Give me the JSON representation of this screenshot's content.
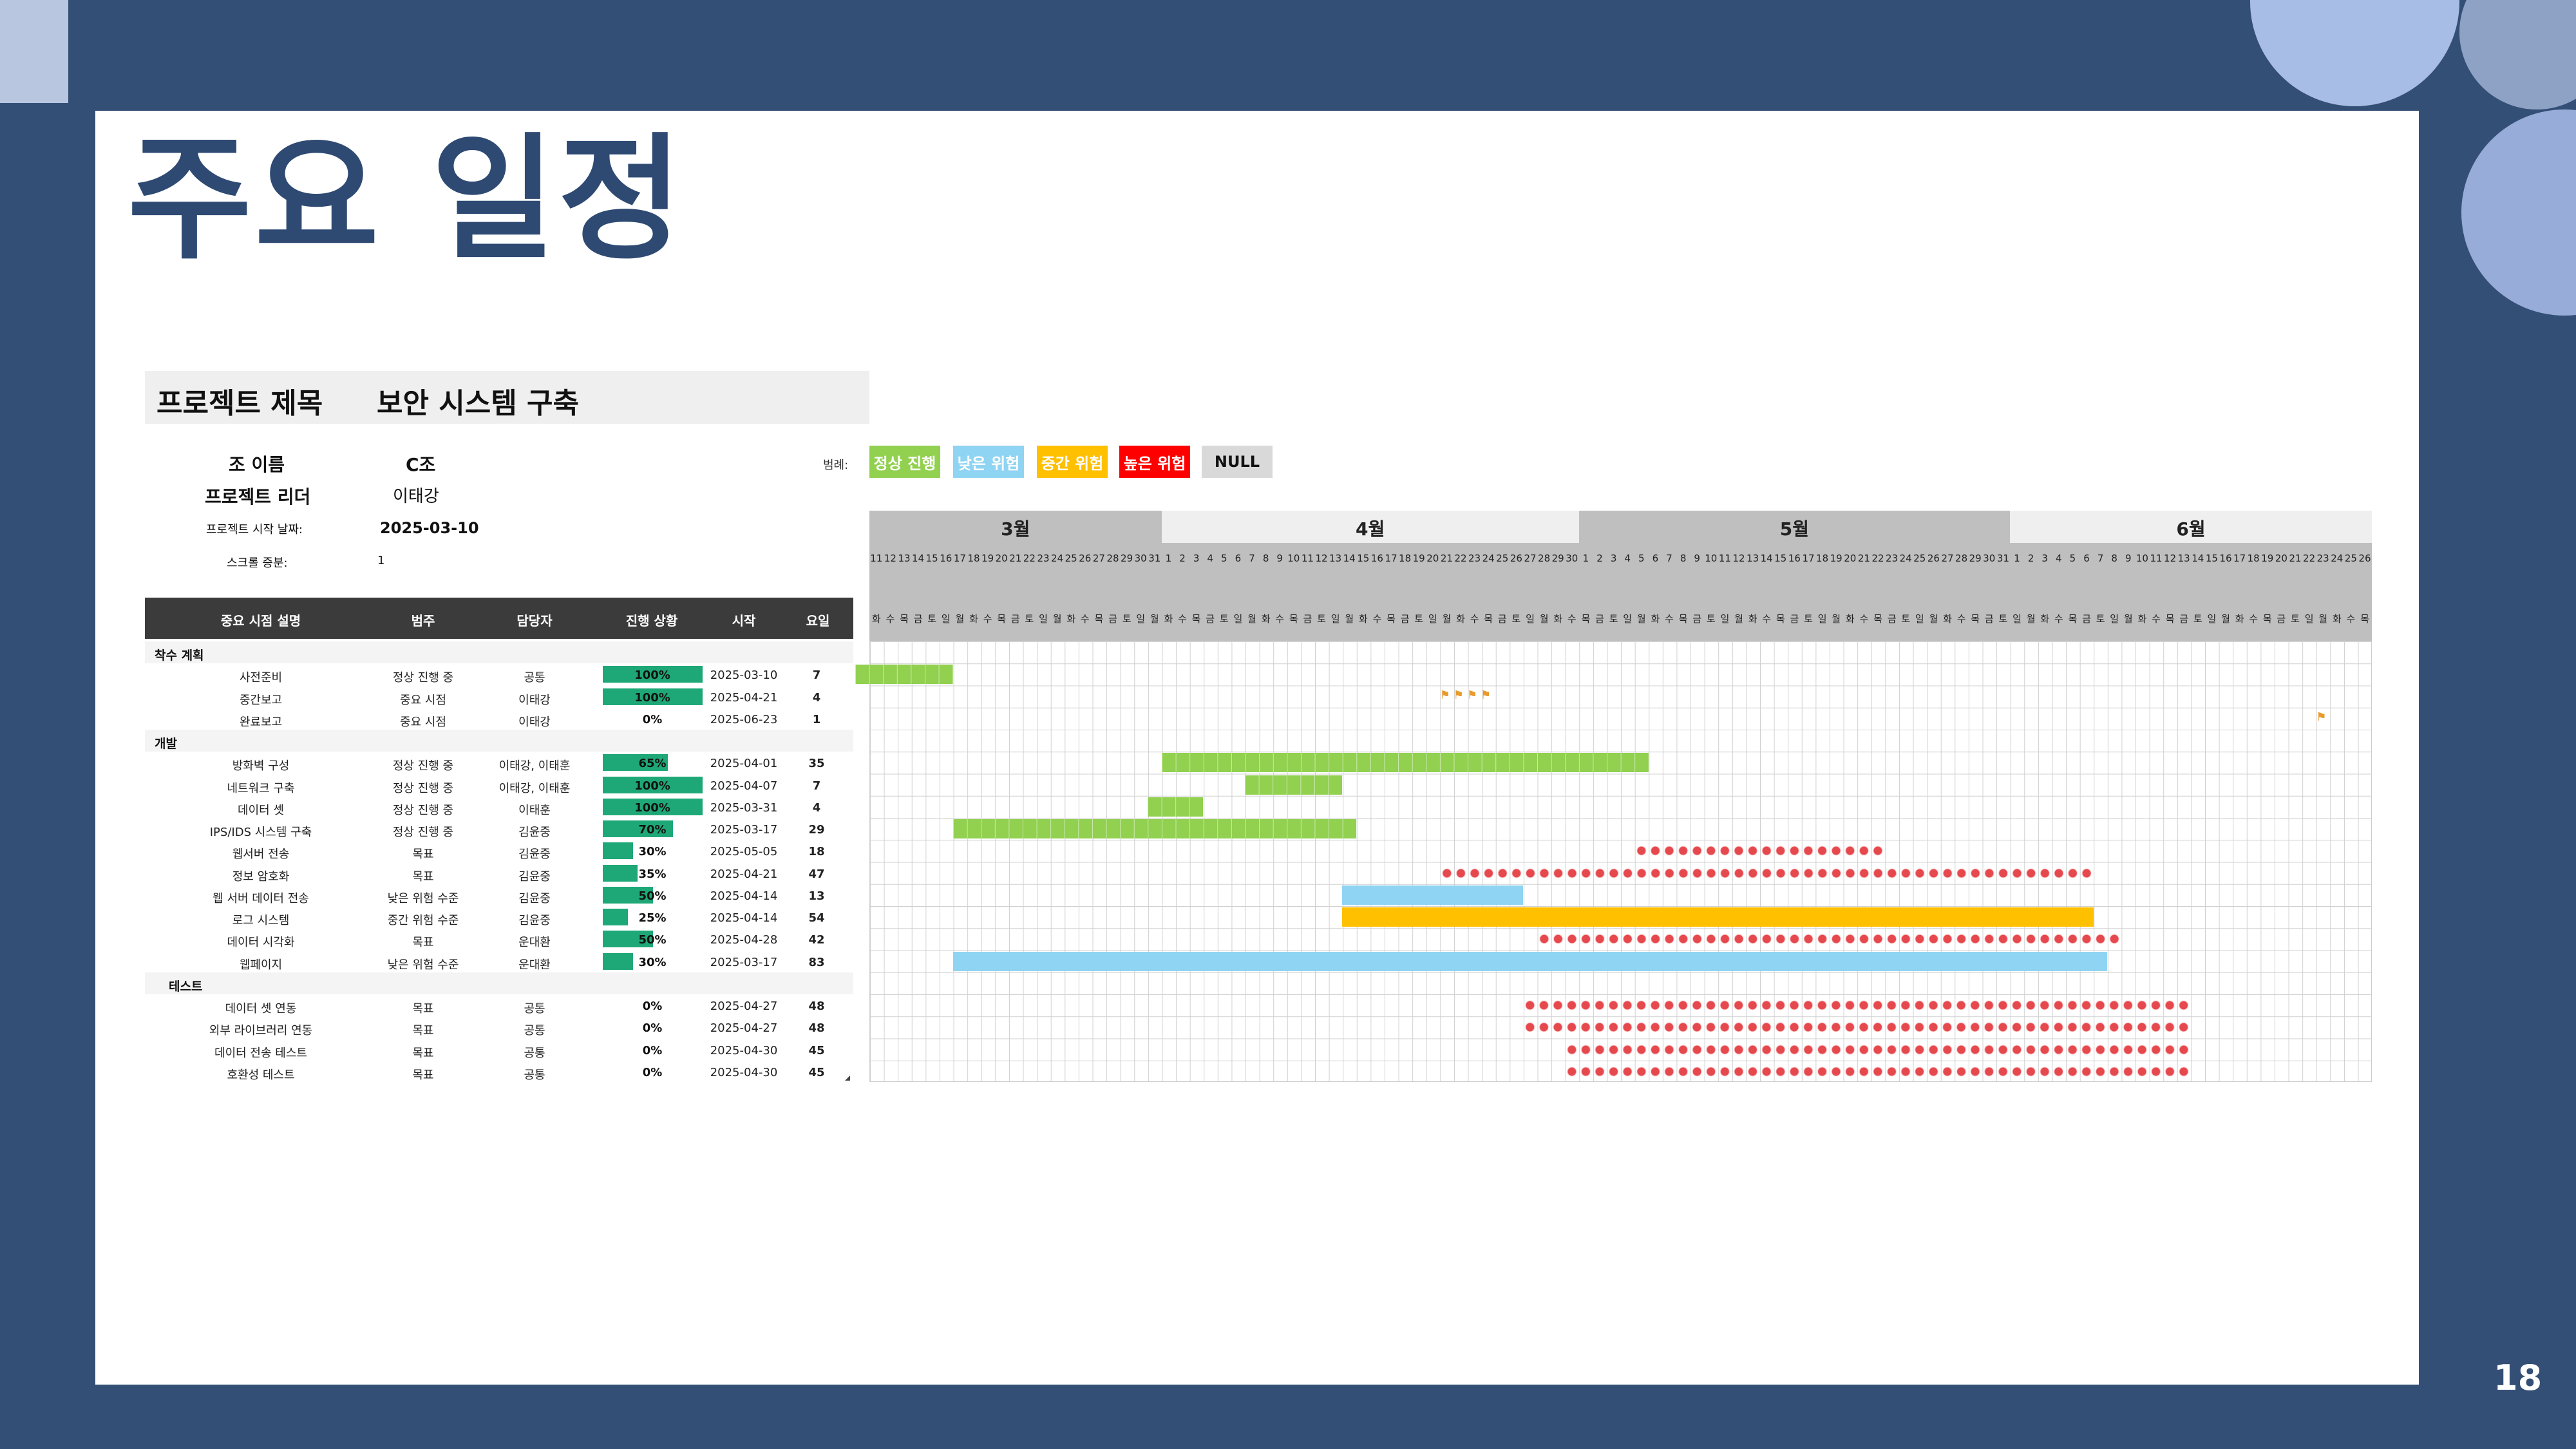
{
  "page": {
    "title": "주요 일정",
    "page_number": "18"
  },
  "project": {
    "title_label": "프로젝트 제목",
    "title_value": "보안 시스템 구축",
    "team_label": "조 이름",
    "team_value": "C조",
    "leader_label": "프로젝트 리더",
    "leader_value": "이태강",
    "start_label": "프로젝트 시작 날짜:",
    "start_value": "2025-03-10",
    "scroll_label": "스크롤 증분:",
    "scroll_value": "1"
  },
  "legend": {
    "label": "범례:",
    "items": [
      {
        "label": "정상 진행",
        "color": "#92d050"
      },
      {
        "label": "낮은 위험",
        "color": "#8fd4f2"
      },
      {
        "label": "중간 위험",
        "color": "#ffc000"
      },
      {
        "label": "높은 위험",
        "color": "#ff0000"
      },
      {
        "label": "NULL",
        "color": "#d9d9d9"
      }
    ]
  },
  "table": {
    "headers": [
      "중요 시점 설명",
      "범주",
      "담당자",
      "진행 상황",
      "시작",
      "요일"
    ],
    "sections": [
      {
        "name": "착수 계획",
        "rows": [
          {
            "desc": "사전준비",
            "cat": "정상 진행 중",
            "owner": "공통",
            "progress": 100,
            "progress_label": "100%",
            "start": "2025-03-10",
            "days": "7"
          },
          {
            "desc": "중간보고",
            "cat": "중요 시점",
            "owner": "이태강",
            "progress": 100,
            "progress_label": "100%",
            "start": "2025-04-21",
            "days": "4"
          },
          {
            "desc": "완료보고",
            "cat": "중요 시점",
            "owner": "이태강",
            "progress": 0,
            "progress_label": "0%",
            "start": "2025-06-23",
            "days": "1"
          }
        ]
      },
      {
        "name": "개발",
        "rows": [
          {
            "desc": "방화벽 구성",
            "cat": "정상 진행 중",
            "owner": "이태강, 이태훈",
            "progress": 65,
            "progress_label": "65%",
            "start": "2025-04-01",
            "days": "35"
          },
          {
            "desc": "네트워크 구축",
            "cat": "정상 진행 중",
            "owner": "이태강, 이태훈",
            "progress": 100,
            "progress_label": "100%",
            "start": "2025-04-07",
            "days": "7"
          },
          {
            "desc": "데이터 셋",
            "cat": "정상 진행 중",
            "owner": "이태훈",
            "progress": 100,
            "progress_label": "100%",
            "start": "2025-03-31",
            "days": "4"
          },
          {
            "desc": "IPS/IDS 시스템 구축",
            "cat": "정상 진행 중",
            "owner": "김윤중",
            "progress": 70,
            "progress_label": "70%",
            "start": "2025-03-17",
            "days": "29"
          },
          {
            "desc": "웹서버 전송",
            "cat": "목표",
            "owner": "김윤중",
            "progress": 30,
            "progress_label": "30%",
            "start": "2025-05-05",
            "days": "18"
          },
          {
            "desc": "정보 암호화",
            "cat": "목표",
            "owner": "김윤중",
            "progress": 35,
            "progress_label": "35%",
            "start": "2025-04-21",
            "days": "47"
          },
          {
            "desc": "웹 서버 데이터 전송",
            "cat": "낮은 위험 수준",
            "owner": "김윤중",
            "progress": 50,
            "progress_label": "50%",
            "start": "2025-04-14",
            "days": "13"
          },
          {
            "desc": "로그 시스템",
            "cat": "중간 위험 수준",
            "owner": "김윤중",
            "progress": 25,
            "progress_label": "25%",
            "start": "2025-04-14",
            "days": "54"
          },
          {
            "desc": "데이터 시각화",
            "cat": "목표",
            "owner": "운대환",
            "progress": 50,
            "progress_label": "50%",
            "start": "2025-04-28",
            "days": "42"
          },
          {
            "desc": "웹페이지",
            "cat": "낮은 위험 수준",
            "owner": "운대환",
            "progress": 30,
            "progress_label": "30%",
            "start": "2025-03-17",
            "days": "83"
          }
        ]
      },
      {
        "name": "테스트",
        "rows": [
          {
            "desc": "데이터 셋 연동",
            "cat": "목표",
            "owner": "공통",
            "progress": 0,
            "progress_label": "0%",
            "start": "2025-04-27",
            "days": "48"
          },
          {
            "desc": "외부 라이브러리 연동",
            "cat": "목표",
            "owner": "공통",
            "progress": 0,
            "progress_label": "0%",
            "start": "2025-04-27",
            "days": "48"
          },
          {
            "desc": "데이터 전송 테스트",
            "cat": "목표",
            "owner": "공통",
            "progress": 0,
            "progress_label": "0%",
            "start": "2025-04-30",
            "days": "45"
          },
          {
            "desc": "호환성 테스트",
            "cat": "목표",
            "owner": "공통",
            "progress": 0,
            "progress_label": "0%",
            "start": "2025-04-30",
            "days": "45"
          }
        ]
      }
    ]
  },
  "gantt": {
    "months": [
      "3월",
      "4월",
      "5월",
      "6월"
    ],
    "month_colors": [
      "#bfbfbf",
      "#efefef",
      "#bfbfbf",
      "#efefef"
    ],
    "days": [
      "11",
      "12",
      "13",
      "14",
      "15",
      "16",
      "17",
      "18",
      "19",
      "20",
      "21",
      "22",
      "23",
      "24",
      "25",
      "26",
      "27",
      "28",
      "29",
      "30",
      "31",
      "1",
      "2",
      "3",
      "4",
      "5",
      "6",
      "7",
      "8",
      "9",
      "10",
      "11",
      "12",
      "13",
      "14",
      "15",
      "16",
      "17",
      "18",
      "19",
      "20",
      "21",
      "22",
      "23",
      "24",
      "25",
      "26",
      "27",
      "28",
      "29",
      "30",
      "1",
      "2",
      "3",
      "4",
      "5",
      "6",
      "7",
      "8",
      "9",
      "10",
      "11",
      "12",
      "13",
      "14",
      "15",
      "16",
      "17",
      "18",
      "19",
      "20",
      "21",
      "22",
      "23",
      "24",
      "25",
      "26",
      "27",
      "28",
      "29",
      "30",
      "31",
      "1",
      "2",
      "3",
      "4",
      "5",
      "6",
      "7",
      "8",
      "9",
      "10",
      "11",
      "12",
      "13",
      "14",
      "15",
      "16",
      "17",
      "18",
      "19",
      "20",
      "21",
      "22",
      "23",
      "24",
      "25",
      "26"
    ],
    "weekdays": [
      "화",
      "수",
      "목",
      "금",
      "토",
      "일",
      "월"
    ],
    "first_weekday_index": 0
  }
}
